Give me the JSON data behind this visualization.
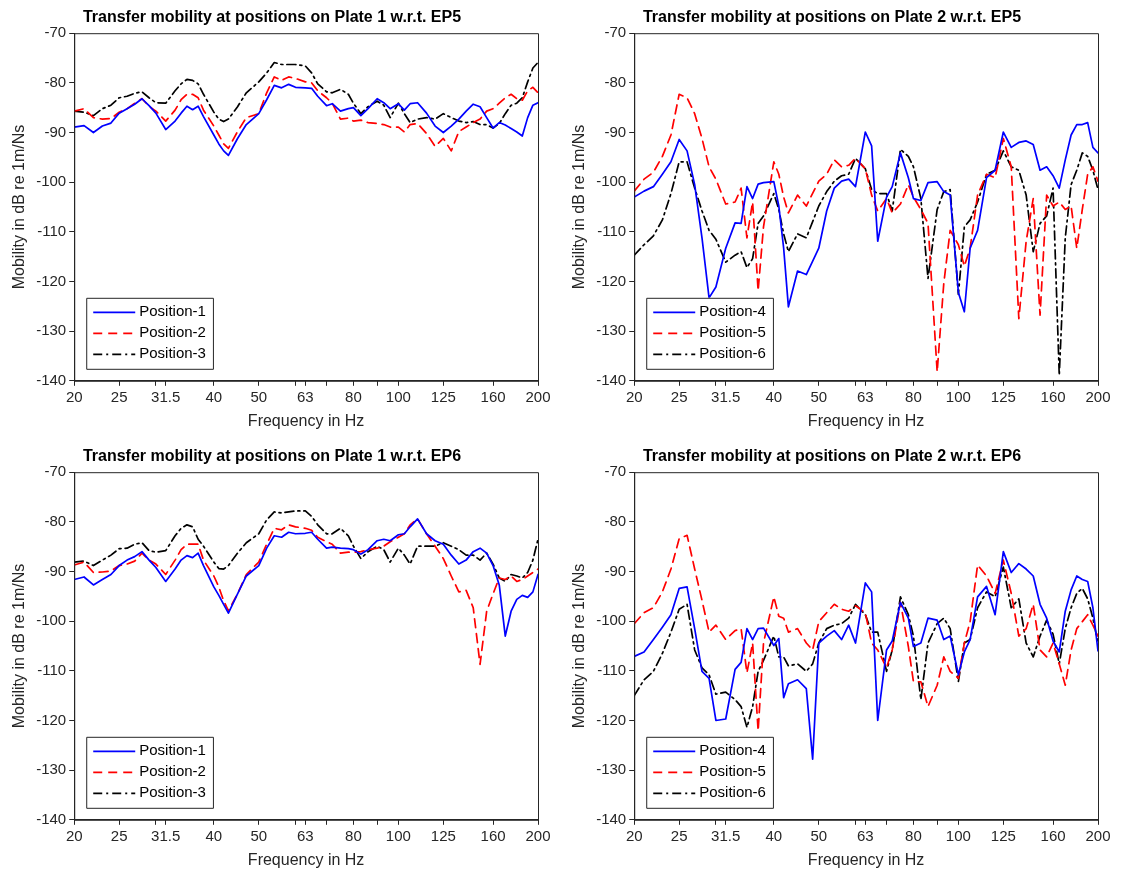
{
  "chart_data": [
    {
      "type": "line",
      "title": "Transfer mobility at positions on Plate 1 w.r.t. EP5",
      "xlabel": "Frequency in Hz",
      "ylabel": "Mobility in dB re 1m/Ns",
      "log": "x",
      "grid": false,
      "legend": "bottom left",
      "xlim": [
        20,
        200
      ],
      "ylim": [
        -140,
        -70
      ],
      "xticks": [
        20,
        25,
        {
          "value": 30,
          "label": null
        },
        31.5,
        40,
        50,
        {
          "value": 60,
          "label": null
        },
        63,
        {
          "value": 70,
          "label": null
        },
        80,
        {
          "value": 90,
          "label": null
        },
        100,
        125,
        160,
        200
      ],
      "yticks": [
        -140,
        -130,
        -120,
        -110,
        -100,
        -90,
        -80,
        -70
      ],
      "x": [
        20,
        21,
        22,
        23,
        24,
        25,
        26,
        27,
        28,
        29,
        30,
        31.5,
        33,
        34,
        35,
        36,
        37,
        38,
        40,
        41,
        42,
        43,
        45,
        47,
        50,
        52,
        54,
        56,
        58,
        60,
        63,
        65,
        67,
        70,
        72,
        75,
        78,
        80,
        83,
        86,
        90,
        93,
        96,
        100,
        103,
        106,
        110,
        115,
        120,
        125,
        130,
        135,
        140,
        145,
        150,
        155,
        160,
        165,
        170,
        175,
        180,
        185,
        190,
        195,
        200
      ],
      "series": [
        {
          "name": "Position-1",
          "color": "#0000ff",
          "line_style": "solid",
          "values": [
            -88.9,
            -88.6,
            -90.0,
            -88.7,
            -88.1,
            -86.1,
            -85.2,
            -84.3,
            -83.2,
            -84.6,
            -86.1,
            -89.4,
            -87.7,
            -86.1,
            -84.7,
            -85.4,
            -84.7,
            -86.8,
            -90.5,
            -92.3,
            -93.7,
            -94.6,
            -91.2,
            -88.4,
            -86.2,
            -83.4,
            -80.5,
            -81.0,
            -80.3,
            -80.9,
            -81.0,
            -81.1,
            -82.7,
            -84.6,
            -84.2,
            -85.7,
            -85.2,
            -85.0,
            -86.6,
            -85.2,
            -83.2,
            -84.0,
            -85.2,
            -84.2,
            -85.5,
            -84.2,
            -84.0,
            -86.1,
            -88.7,
            -90.0,
            -88.7,
            -87.3,
            -85.7,
            -84.3,
            -84.8,
            -87.0,
            -89.1,
            -88.0,
            -88.5,
            -89.2,
            -89.9,
            -90.7,
            -87.0,
            -84.5,
            -84.0
          ]
        },
        {
          "name": "Position-2",
          "color": "#ff0000",
          "line_style": "dashed",
          "values": [
            -85.7,
            -85.2,
            -87.0,
            -87.3,
            -87.2,
            -85.9,
            -85.2,
            -84.1,
            -83.2,
            -84.7,
            -85.7,
            -87.7,
            -85.5,
            -83.4,
            -82.3,
            -82.3,
            -83.0,
            -85.5,
            -88.7,
            -90.5,
            -92.3,
            -93.2,
            -89.8,
            -87.0,
            -86.2,
            -82.0,
            -78.8,
            -79.5,
            -78.8,
            -79.1,
            -79.8,
            -80.0,
            -81.6,
            -83.0,
            -84.1,
            -87.3,
            -87.1,
            -87.7,
            -87.5,
            -88.0,
            -88.2,
            -88.4,
            -88.9,
            -88.9,
            -89.9,
            -88.4,
            -88.2,
            -90.2,
            -92.8,
            -91.2,
            -93.7,
            -89.8,
            -88.9,
            -88.0,
            -87.3,
            -85.7,
            -85.2,
            -84.1,
            -83.0,
            -82.3,
            -83.2,
            -83.5,
            -81.6,
            -80.9,
            -82.0
          ]
        },
        {
          "name": "Position-3",
          "color": "#000000",
          "line_style": "dashdot",
          "values": [
            -85.7,
            -85.9,
            -86.6,
            -85.2,
            -84.5,
            -83.0,
            -82.7,
            -82.1,
            -81.8,
            -83.0,
            -84.0,
            -84.1,
            -81.6,
            -80.2,
            -79.3,
            -79.5,
            -80.2,
            -82.3,
            -85.9,
            -87.3,
            -87.8,
            -87.3,
            -84.8,
            -82.0,
            -79.8,
            -78.0,
            -75.9,
            -76.3,
            -76.3,
            -76.3,
            -76.6,
            -78.0,
            -80.2,
            -81.8,
            -82.0,
            -81.3,
            -82.3,
            -84.1,
            -86.2,
            -84.8,
            -83.7,
            -84.5,
            -87.0,
            -84.1,
            -86.2,
            -88.0,
            -87.3,
            -87.0,
            -87.3,
            -86.2,
            -87.0,
            -87.7,
            -88.0,
            -87.8,
            -88.4,
            -88.4,
            -89.1,
            -88.2,
            -86.2,
            -84.5,
            -84.1,
            -83.0,
            -79.8,
            -77.0,
            -75.9
          ]
        }
      ]
    },
    {
      "type": "line",
      "title": "Transfer mobility at positions on Plate 2 w.r.t. EP5",
      "xlabel": "Frequency in Hz",
      "ylabel": "Mobility in dB re 1m/Ns",
      "log": "x",
      "grid": false,
      "legend": "bottom left",
      "xlim": [
        20,
        200
      ],
      "ylim": [
        -140,
        -70
      ],
      "xticks": [
        20,
        25,
        {
          "value": 30,
          "label": null
        },
        31.5,
        40,
        50,
        {
          "value": 60,
          "label": null
        },
        63,
        {
          "value": 70,
          "label": null
        },
        80,
        {
          "value": 90,
          "label": null
        },
        100,
        125,
        160,
        200
      ],
      "yticks": [
        -140,
        -130,
        -120,
        -110,
        -100,
        -90,
        -80,
        -70
      ],
      "x": [
        20,
        21,
        22,
        23,
        24,
        25,
        26,
        27,
        28,
        29,
        30,
        31.5,
        33,
        34,
        35,
        36,
        37,
        38,
        40,
        41,
        42,
        43,
        45,
        47,
        50,
        52,
        54,
        56,
        58,
        60,
        63,
        65,
        67,
        70,
        72,
        75,
        78,
        80,
        83,
        86,
        90,
        93,
        96,
        100,
        103,
        106,
        110,
        115,
        120,
        125,
        130,
        135,
        140,
        145,
        150,
        155,
        160,
        165,
        170,
        175,
        180,
        185,
        190,
        195,
        200
      ],
      "series": [
        {
          "name": "Position-4",
          "color": "#0000ff",
          "line_style": "solid",
          "values": [
            -103.0,
            -101.8,
            -100.9,
            -98.4,
            -95.9,
            -91.4,
            -93.7,
            -100.5,
            -111.2,
            -123.3,
            -121.1,
            -113.3,
            -108.2,
            -108.3,
            -100.9,
            -103.3,
            -100.4,
            -100.1,
            -99.9,
            -104.8,
            -113.3,
            -125.1,
            -117.9,
            -118.6,
            -113.3,
            -105.8,
            -101.2,
            -99.8,
            -99.4,
            -100.9,
            -89.9,
            -92.7,
            -111.9,
            -103.0,
            -100.9,
            -94.1,
            -99.1,
            -103.3,
            -103.7,
            -100.1,
            -99.9,
            -101.9,
            -102.6,
            -122.2,
            -126.1,
            -113.3,
            -109.7,
            -99.1,
            -97.6,
            -89.9,
            -93.0,
            -92.0,
            -91.7,
            -92.4,
            -97.6,
            -96.9,
            -98.7,
            -101.2,
            -95.5,
            -90.5,
            -88.4,
            -88.4,
            -88.0,
            -93.0,
            -94.1
          ]
        },
        {
          "name": "Position-5",
          "color": "#ff0000",
          "line_style": "dashed",
          "values": [
            -101.8,
            -99.4,
            -98.0,
            -94.8,
            -90.5,
            -82.3,
            -83.0,
            -86.2,
            -91.2,
            -96.9,
            -99.4,
            -104.4,
            -104.0,
            -101.2,
            -111.2,
            -104.0,
            -121.9,
            -109.0,
            -95.9,
            -98.4,
            -103.0,
            -106.2,
            -102.6,
            -104.8,
            -99.8,
            -98.4,
            -95.5,
            -96.9,
            -96.6,
            -95.2,
            -97.3,
            -102.6,
            -105.8,
            -103.3,
            -106.2,
            -104.4,
            -100.5,
            -103.0,
            -105.5,
            -108.3,
            -138.2,
            -120.4,
            -109.7,
            -112.6,
            -116.9,
            -113.3,
            -102.6,
            -98.4,
            -99.1,
            -91.2,
            -96.9,
            -127.5,
            -111.9,
            -103.3,
            -126.8,
            -102.6,
            -104.8,
            -104.0,
            -105.5,
            -104.8,
            -113.3,
            -105.5,
            -98.4,
            -96.9,
            -99.8
          ]
        },
        {
          "name": "Position-6",
          "color": "#000000",
          "line_style": "dashdot",
          "values": [
            -114.7,
            -112.6,
            -110.8,
            -107.6,
            -102.3,
            -95.9,
            -95.9,
            -101.2,
            -105.8,
            -109.7,
            -111.5,
            -116.1,
            -114.7,
            -114.0,
            -117.2,
            -115.4,
            -108.3,
            -106.8,
            -102.3,
            -105.5,
            -110.4,
            -114.0,
            -110.4,
            -111.2,
            -104.8,
            -101.9,
            -99.8,
            -98.7,
            -98.4,
            -95.2,
            -97.3,
            -101.5,
            -102.3,
            -102.3,
            -105.8,
            -93.4,
            -94.8,
            -96.9,
            -103.3,
            -119.4,
            -105.5,
            -101.9,
            -101.5,
            -122.6,
            -109.0,
            -107.6,
            -104.0,
            -98.4,
            -97.6,
            -93.7,
            -96.9,
            -97.6,
            -102.6,
            -114.0,
            -108.3,
            -106.8,
            -101.2,
            -138.9,
            -111.2,
            -100.5,
            -97.6,
            -94.1,
            -94.8,
            -97.6,
            -101.5
          ]
        }
      ]
    },
    {
      "type": "line",
      "title": "Transfer mobility at positions on Plate 1 w.r.t. EP6",
      "xlabel": "Frequency in Hz",
      "ylabel": "Mobility in dB re 1m/Ns",
      "log": "x",
      "grid": false,
      "legend": "bottom left",
      "xlim": [
        20,
        200
      ],
      "ylim": [
        -140,
        -70
      ],
      "xticks": [
        20,
        25,
        {
          "value": 30,
          "label": null
        },
        31.5,
        40,
        50,
        {
          "value": 60,
          "label": null
        },
        63,
        {
          "value": 70,
          "label": null
        },
        80,
        {
          "value": 90,
          "label": null
        },
        100,
        125,
        160,
        200
      ],
      "yticks": [
        -140,
        -130,
        -120,
        -110,
        -100,
        -90,
        -80,
        -70
      ],
      "x": [
        20,
        21,
        22,
        23,
        24,
        25,
        26,
        27,
        28,
        29,
        30,
        31.5,
        33,
        34,
        35,
        36,
        37,
        38,
        40,
        41,
        42,
        43,
        45,
        47,
        50,
        52,
        54,
        56,
        58,
        60,
        63,
        65,
        67,
        70,
        72,
        75,
        78,
        80,
        83,
        86,
        90,
        93,
        96,
        100,
        103,
        106,
        110,
        115,
        120,
        125,
        130,
        135,
        140,
        145,
        150,
        155,
        160,
        165,
        170,
        175,
        180,
        185,
        190,
        195,
        200
      ],
      "series": [
        {
          "name": "Position-1",
          "color": "#0000ff",
          "line_style": "solid",
          "values": [
            -91.6,
            -91.1,
            -92.7,
            -91.6,
            -90.6,
            -88.8,
            -87.7,
            -87.0,
            -86.0,
            -87.7,
            -89.2,
            -92.0,
            -89.5,
            -87.7,
            -86.8,
            -87.2,
            -86.3,
            -88.8,
            -93.1,
            -94.8,
            -96.6,
            -98.4,
            -94.5,
            -90.9,
            -88.8,
            -85.3,
            -82.8,
            -83.1,
            -82.1,
            -82.4,
            -82.3,
            -82.1,
            -83.5,
            -85.3,
            -85.1,
            -85.3,
            -85.4,
            -85.6,
            -86.5,
            -85.6,
            -83.8,
            -83.5,
            -83.8,
            -82.6,
            -82.4,
            -81.0,
            -79.4,
            -82.4,
            -83.8,
            -84.5,
            -86.7,
            -88.5,
            -87.7,
            -86.0,
            -85.3,
            -86.3,
            -88.8,
            -92.7,
            -103.0,
            -98.0,
            -95.6,
            -94.8,
            -95.2,
            -94.1,
            -90.6
          ]
        },
        {
          "name": "Position-2",
          "color": "#ff0000",
          "line_style": "dashed",
          "values": [
            -88.7,
            -88.1,
            -90.2,
            -90.1,
            -89.9,
            -88.8,
            -88.5,
            -87.9,
            -86.3,
            -87.7,
            -88.5,
            -90.6,
            -87.7,
            -85.6,
            -84.5,
            -84.5,
            -84.5,
            -87.7,
            -90.9,
            -93.1,
            -95.9,
            -97.9,
            -94.5,
            -90.6,
            -88.1,
            -84.5,
            -81.3,
            -81.6,
            -80.6,
            -81.0,
            -81.3,
            -81.7,
            -83.1,
            -84.0,
            -84.5,
            -86.3,
            -86.1,
            -86.1,
            -86.0,
            -85.6,
            -85.3,
            -84.9,
            -84.0,
            -83.1,
            -82.4,
            -80.6,
            -79.4,
            -82.4,
            -84.9,
            -87.4,
            -90.9,
            -94.1,
            -93.8,
            -97.3,
            -108.7,
            -98.0,
            -94.5,
            -91.3,
            -91.6,
            -90.9,
            -92.0,
            -91.6,
            -90.9,
            -90.2,
            -89.5
          ]
        },
        {
          "name": "Position-3",
          "color": "#000000",
          "line_style": "dashdot",
          "values": [
            -88.1,
            -87.9,
            -88.8,
            -87.7,
            -86.7,
            -85.4,
            -85.3,
            -84.5,
            -84.2,
            -85.8,
            -86.1,
            -85.8,
            -82.8,
            -81.3,
            -80.6,
            -81.0,
            -83.5,
            -84.9,
            -88.1,
            -89.4,
            -89.5,
            -88.8,
            -86.3,
            -84.2,
            -82.4,
            -79.6,
            -78.0,
            -78.2,
            -78.0,
            -77.8,
            -77.8,
            -78.9,
            -80.6,
            -82.4,
            -82.4,
            -81.3,
            -82.8,
            -84.9,
            -87.4,
            -86.0,
            -84.9,
            -85.6,
            -88.1,
            -85.3,
            -86.7,
            -88.5,
            -84.9,
            -84.9,
            -84.9,
            -84.2,
            -84.9,
            -85.6,
            -86.7,
            -86.7,
            -87.7,
            -86.3,
            -88.5,
            -91.3,
            -92.0,
            -90.6,
            -90.9,
            -91.3,
            -90.2,
            -87.7,
            -83.5
          ]
        }
      ]
    },
    {
      "type": "line",
      "title": "Transfer mobility at positions on Plate 2 w.r.t. EP6",
      "xlabel": "Frequency in Hz",
      "ylabel": "Mobility in dB re 1m/Ns",
      "log": "x",
      "grid": false,
      "legend": "bottom left",
      "xlim": [
        20,
        200
      ],
      "ylim": [
        -140,
        -70
      ],
      "xticks": [
        20,
        25,
        {
          "value": 30,
          "label": null
        },
        31.5,
        40,
        50,
        {
          "value": 60,
          "label": null
        },
        63,
        {
          "value": 70,
          "label": null
        },
        80,
        {
          "value": 90,
          "label": null
        },
        100,
        125,
        160,
        200
      ],
      "yticks": [
        -140,
        -130,
        -120,
        -110,
        -100,
        -90,
        -80,
        -70
      ],
      "x": [
        20,
        21,
        22,
        23,
        24,
        25,
        26,
        27,
        28,
        29,
        30,
        31.5,
        33,
        34,
        35,
        36,
        37,
        38,
        40,
        41,
        42,
        43,
        45,
        47,
        48.5,
        50,
        52,
        54,
        56,
        58,
        60,
        63,
        65,
        67,
        70,
        72,
        75,
        78,
        80,
        83,
        86,
        90,
        93,
        96,
        100,
        103,
        106,
        110,
        115,
        120,
        125,
        130,
        135,
        140,
        145,
        150,
        155,
        160,
        165,
        170,
        175,
        180,
        185,
        190,
        195,
        200
      ],
      "series": [
        {
          "name": "Position-4",
          "color": "#0000ff",
          "line_style": "solid",
          "values": [
            -107.1,
            -106.2,
            -103.7,
            -101.2,
            -98.7,
            -93.4,
            -93.1,
            -101.5,
            -110.1,
            -111.5,
            -120.0,
            -119.7,
            -109.7,
            -108.3,
            -101.5,
            -103.7,
            -101.5,
            -101.4,
            -104.9,
            -103.5,
            -115.4,
            -112.6,
            -111.8,
            -113.6,
            -127.8,
            -104.4,
            -103.0,
            -101.9,
            -103.7,
            -100.8,
            -104.4,
            -92.3,
            -94.1,
            -120.0,
            -105.8,
            -104.0,
            -96.2,
            -99.4,
            -105.1,
            -104.4,
            -99.4,
            -99.8,
            -103.7,
            -103.0,
            -110.8,
            -106.2,
            -103.7,
            -95.1,
            -93.0,
            -98.7,
            -86.0,
            -90.2,
            -88.4,
            -89.5,
            -90.9,
            -96.6,
            -99.4,
            -104.0,
            -106.2,
            -98.0,
            -93.7,
            -90.9,
            -91.6,
            -92.0,
            -97.3,
            -106.0
          ]
        },
        {
          "name": "Position-5",
          "color": "#ff0000",
          "line_style": "dashed",
          "values": [
            -100.5,
            -98.3,
            -97.3,
            -94.1,
            -89.5,
            -83.4,
            -82.7,
            -89.5,
            -95.8,
            -102.2,
            -100.8,
            -103.7,
            -101.9,
            -101.5,
            -110.4,
            -104.4,
            -122.1,
            -104.4,
            -95.1,
            -99.0,
            -99.4,
            -102.2,
            -101.5,
            -104.4,
            -105.8,
            -100.1,
            -98.3,
            -96.6,
            -97.6,
            -98.0,
            -96.9,
            -98.3,
            -104.4,
            -105.8,
            -109.4,
            -105.8,
            -96.2,
            -105.1,
            -112.2,
            -112.2,
            -117.2,
            -112.9,
            -107.2,
            -110.1,
            -111.5,
            -104.4,
            -100.1,
            -88.7,
            -90.9,
            -94.4,
            -87.7,
            -94.4,
            -103.0,
            -101.5,
            -96.6,
            -105.8,
            -107.2,
            -104.4,
            -108.6,
            -112.9,
            -105.8,
            -101.5,
            -100.1,
            -98.7,
            -100.8,
            -103.0
          ]
        },
        {
          "name": "Position-6",
          "color": "#000000",
          "line_style": "dashdot",
          "values": [
            -115.0,
            -111.8,
            -110.1,
            -106.5,
            -102.2,
            -97.6,
            -96.6,
            -105.8,
            -109.4,
            -110.8,
            -114.7,
            -114.3,
            -115.8,
            -117.2,
            -121.4,
            -117.2,
            -110.1,
            -107.9,
            -103.0,
            -107.2,
            -107.2,
            -109.0,
            -108.6,
            -110.1,
            -108.6,
            -104.4,
            -101.5,
            -100.8,
            -100.5,
            -99.4,
            -96.6,
            -98.7,
            -102.2,
            -102.2,
            -110.1,
            -105.8,
            -95.1,
            -98.7,
            -103.0,
            -115.8,
            -104.4,
            -100.5,
            -99.4,
            -101.5,
            -112.2,
            -104.4,
            -103.7,
            -97.3,
            -94.1,
            -95.1,
            -89.1,
            -97.3,
            -95.5,
            -104.4,
            -107.2,
            -103.0,
            -99.8,
            -102.6,
            -108.6,
            -101.5,
            -97.3,
            -94.4,
            -93.4,
            -95.5,
            -99.4,
            -104.4
          ]
        }
      ]
    }
  ]
}
